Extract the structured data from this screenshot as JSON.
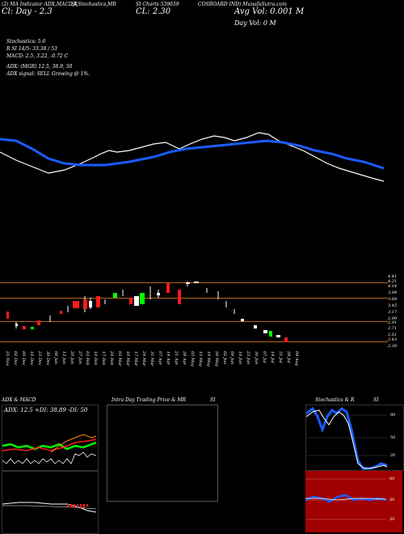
{
  "header": {
    "line1_a": "(2) MA Indicator ADX,MACD,R",
    "line1_b": "SI,Stochastics,MR",
    "line1_c": "SI Charts 539659",
    "line1_d": "COSBOARD IND) MunafaSutra.com",
    "line2_a": "Cl: Day - 2.3",
    "line2_b": "CL: 2.30",
    "line2_c": "Avg Vol: 0.001 M",
    "line3_c": "Day Vol: 0   M",
    "stoch": "Stochastics: 5.6",
    "rsi_line": "R                   SI 14/5: 33.38  / 53",
    "macd_line": "MACD: 2.5, 3.22, -0.72  C",
    "adx_line": "ADX:                         (MGR) 12.5,  38.9,  50",
    "signal_line": "ADX  signal: SELL  Growing  @ 1%."
  },
  "price_axis": {
    "ticks": [
      "4.41",
      "4.21",
      "4.14",
      "3.94",
      "3.68",
      "3.45",
      "3.17",
      "2.99",
      "2.91",
      "2.71",
      "2.51",
      "2.43",
      "2.30"
    ]
  },
  "dates": [
    "25 Nov",
    "02 Dec",
    "09 Dec",
    "16 Dec",
    "23 Dec",
    "30 Dec",
    "06 Jan",
    "13 Jan",
    "20 Jan",
    "27 Jan",
    "03 Feb",
    "10 Feb",
    "17 Feb",
    "24 Feb",
    "03 Mar",
    "10 Mar",
    "17 Mar",
    "24 Mar",
    "31 Mar",
    "07 Apr",
    "14 Apr",
    "21 Apr",
    "28 Apr",
    "05 May",
    "12 May",
    "19 May",
    "26 May",
    "02 Jun",
    "09 Jun",
    "16 Jun",
    "23 Jun",
    "30 Jun",
    "07 Jul",
    "14 Jul",
    "21 Jul",
    "28 Jul",
    "04 Aug"
  ],
  "panels": {
    "adx_title": "ADX  & MACD",
    "adx_values": "ADX: 12.5  +DI: 38.89  -DI: 50",
    "intra_title": "Intra  Day Trading Price  & MR",
    "intra_si": "SI",
    "stoch_title": "Stochastics & R",
    "stoch_si": "SI",
    "stoch_ticks": [
      "80",
      "50",
      "20"
    ],
    "rsi_ticks": [
      "80",
      "50",
      "20"
    ]
  },
  "colors": {
    "ma_blue": "#1a5cff",
    "price_white": "#ffffff",
    "up_green": "#00ff00",
    "down_red": "#ff1a1a",
    "rule_brown": "#b5651d",
    "rsi_bg": "#a00000"
  }
}
